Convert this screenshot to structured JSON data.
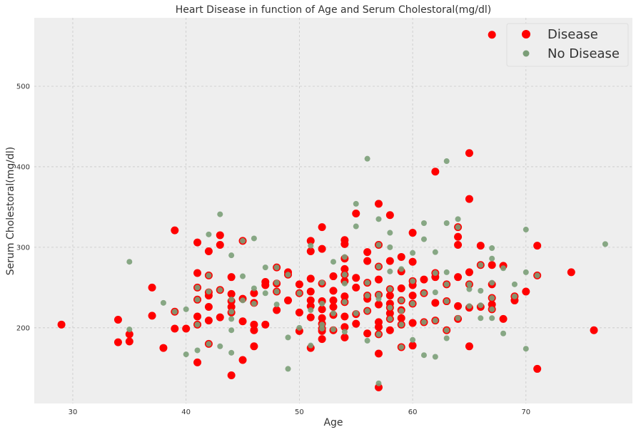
{
  "chart_data": {
    "type": "scatter",
    "title": "Heart Disease in function of Age and Serum Cholestoral(mg/dl)",
    "xlabel": "Age",
    "ylabel": "Serum Cholestoral(mg/dl)",
    "xlim": [
      26.6,
      79.4
    ],
    "ylim": [
      106,
      585
    ],
    "xticks": [
      30,
      40,
      50,
      60,
      70
    ],
    "yticks": [
      200,
      300,
      400,
      500
    ],
    "grid": true,
    "legend_position": "top-right",
    "background": "#EEEEEE",
    "series": [
      {
        "name": "Disease",
        "color": "#FF0000",
        "points": [
          [
            29,
            204
          ],
          [
            34,
            210
          ],
          [
            34,
            182
          ],
          [
            35,
            192
          ],
          [
            35,
            183
          ],
          [
            37,
            215
          ],
          [
            37,
            250
          ],
          [
            38,
            175
          ],
          [
            39,
            199
          ],
          [
            39,
            220
          ],
          [
            39,
            321
          ],
          [
            40,
            199
          ],
          [
            41,
            157
          ],
          [
            41,
            204
          ],
          [
            41,
            214
          ],
          [
            41,
            235
          ],
          [
            41,
            250
          ],
          [
            41,
            268
          ],
          [
            41,
            306
          ],
          [
            42,
            180
          ],
          [
            42,
            209
          ],
          [
            42,
            226
          ],
          [
            42,
            240
          ],
          [
            42,
            244
          ],
          [
            42,
            265
          ],
          [
            42,
            295
          ],
          [
            43,
            213
          ],
          [
            43,
            247
          ],
          [
            43,
            303
          ],
          [
            43,
            315
          ],
          [
            44,
            141
          ],
          [
            44,
            219
          ],
          [
            44,
            226
          ],
          [
            44,
            233
          ],
          [
            44,
            242
          ],
          [
            44,
            263
          ],
          [
            45,
            160
          ],
          [
            45,
            208
          ],
          [
            45,
            236
          ],
          [
            45,
            308
          ],
          [
            46,
            177
          ],
          [
            46,
            197
          ],
          [
            46,
            204
          ],
          [
            46,
            231
          ],
          [
            46,
            243
          ],
          [
            47,
            204
          ],
          [
            47,
            253
          ],
          [
            47,
            257
          ],
          [
            48,
            222
          ],
          [
            48,
            245
          ],
          [
            48,
            255
          ],
          [
            48,
            275
          ],
          [
            49,
            234
          ],
          [
            49,
            266
          ],
          [
            49,
            269
          ],
          [
            50,
            196
          ],
          [
            50,
            219
          ],
          [
            50,
            243
          ],
          [
            50,
            254
          ],
          [
            51,
            175
          ],
          [
            51,
            213
          ],
          [
            51,
            227
          ],
          [
            51,
            234
          ],
          [
            51,
            245
          ],
          [
            51,
            261
          ],
          [
            51,
            295
          ],
          [
            51,
            308
          ],
          [
            52,
            186
          ],
          [
            52,
            196
          ],
          [
            52,
            199
          ],
          [
            52,
            205
          ],
          [
            52,
            212
          ],
          [
            52,
            223
          ],
          [
            52,
            233
          ],
          [
            52,
            255
          ],
          [
            52,
            298
          ],
          [
            52,
            325
          ],
          [
            53,
            197
          ],
          [
            53,
            216
          ],
          [
            53,
            226
          ],
          [
            53,
            234
          ],
          [
            53,
            246
          ],
          [
            53,
            264
          ],
          [
            54,
            188
          ],
          [
            54,
            201
          ],
          [
            54,
            214
          ],
          [
            54,
            232
          ],
          [
            54,
            239
          ],
          [
            54,
            258
          ],
          [
            54,
            266
          ],
          [
            54,
            273
          ],
          [
            54,
            286
          ],
          [
            54,
            304
          ],
          [
            54,
            309
          ],
          [
            55,
            205
          ],
          [
            55,
            217
          ],
          [
            55,
            250
          ],
          [
            55,
            262
          ],
          [
            55,
            342
          ],
          [
            56,
            193
          ],
          [
            56,
            221
          ],
          [
            56,
            236
          ],
          [
            56,
            240
          ],
          [
            56,
            256
          ],
          [
            56,
            283
          ],
          [
            56,
            294
          ],
          [
            57,
            126
          ],
          [
            57,
            168
          ],
          [
            57,
            192
          ],
          [
            57,
            201
          ],
          [
            57,
            207
          ],
          [
            57,
            229
          ],
          [
            57,
            241
          ],
          [
            57,
            260
          ],
          [
            57,
            276
          ],
          [
            57,
            303
          ],
          [
            57,
            354
          ],
          [
            58,
            197
          ],
          [
            58,
            211
          ],
          [
            58,
            218
          ],
          [
            58,
            225
          ],
          [
            58,
            230
          ],
          [
            58,
            240
          ],
          [
            58,
            248
          ],
          [
            58,
            283
          ],
          [
            58,
            340
          ],
          [
            59,
            176
          ],
          [
            59,
            204
          ],
          [
            59,
            212
          ],
          [
            59,
            222
          ],
          [
            59,
            234
          ],
          [
            59,
            249
          ],
          [
            59,
            270
          ],
          [
            59,
            288
          ],
          [
            60,
            178
          ],
          [
            60,
            206
          ],
          [
            60,
            230
          ],
          [
            60,
            240
          ],
          [
            60,
            253
          ],
          [
            60,
            258
          ],
          [
            60,
            282
          ],
          [
            60,
            318
          ],
          [
            61,
            207
          ],
          [
            61,
            243
          ],
          [
            61,
            260
          ],
          [
            62,
            209
          ],
          [
            62,
            231
          ],
          [
            62,
            263
          ],
          [
            62,
            268
          ],
          [
            62,
            394
          ],
          [
            63,
            197
          ],
          [
            63,
            233
          ],
          [
            63,
            254
          ],
          [
            64,
            211
          ],
          [
            64,
            227
          ],
          [
            64,
            263
          ],
          [
            64,
            303
          ],
          [
            64,
            313
          ],
          [
            64,
            325
          ],
          [
            65,
            177
          ],
          [
            65,
            225
          ],
          [
            65,
            254
          ],
          [
            65,
            269
          ],
          [
            65,
            360
          ],
          [
            65,
            417
          ],
          [
            66,
            226
          ],
          [
            66,
            278
          ],
          [
            66,
            302
          ],
          [
            67,
            223
          ],
          [
            67,
            229
          ],
          [
            67,
            237
          ],
          [
            67,
            254
          ],
          [
            67,
            278
          ],
          [
            67,
            564
          ],
          [
            68,
            211
          ],
          [
            68,
            277
          ],
          [
            69,
            234
          ],
          [
            69,
            239
          ],
          [
            70,
            245
          ],
          [
            71,
            149
          ],
          [
            71,
            265
          ],
          [
            71,
            302
          ],
          [
            74,
            269
          ],
          [
            76,
            197
          ]
        ]
      },
      {
        "name": "No Disease",
        "color": "#7B9E78",
        "points": [
          [
            35,
            198
          ],
          [
            35,
            282
          ],
          [
            38,
            231
          ],
          [
            39,
            220
          ],
          [
            40,
            167
          ],
          [
            40,
            223
          ],
          [
            41,
            172
          ],
          [
            41,
            204
          ],
          [
            41,
            235
          ],
          [
            41,
            250
          ],
          [
            42,
            180
          ],
          [
            42,
            245
          ],
          [
            42,
            265
          ],
          [
            42,
            316
          ],
          [
            43,
            177
          ],
          [
            43,
            247
          ],
          [
            43,
            341
          ],
          [
            44,
            169
          ],
          [
            44,
            197
          ],
          [
            44,
            211
          ],
          [
            44,
            220
          ],
          [
            44,
            235
          ],
          [
            44,
            290
          ],
          [
            45,
            234
          ],
          [
            45,
            264
          ],
          [
            45,
            308
          ],
          [
            46,
            230
          ],
          [
            46,
            249
          ],
          [
            46,
            311
          ],
          [
            47,
            243
          ],
          [
            47,
            275
          ],
          [
            48,
            229
          ],
          [
            48,
            245
          ],
          [
            48,
            256
          ],
          [
            48,
            275
          ],
          [
            49,
            149
          ],
          [
            49,
            188
          ],
          [
            49,
            266
          ],
          [
            50,
            200
          ],
          [
            50,
            243
          ],
          [
            51,
            178
          ],
          [
            51,
            222
          ],
          [
            51,
            302
          ],
          [
            52,
            199
          ],
          [
            52,
            204
          ],
          [
            52,
            230
          ],
          [
            52,
            256
          ],
          [
            53,
            198
          ],
          [
            53,
            218
          ],
          [
            53,
            282
          ],
          [
            54,
            195
          ],
          [
            54,
            232
          ],
          [
            54,
            255
          ],
          [
            54,
            266
          ],
          [
            54,
            288
          ],
          [
            55,
            218
          ],
          [
            55,
            326
          ],
          [
            55,
            354
          ],
          [
            56,
            184
          ],
          [
            56,
            221
          ],
          [
            56,
            240
          ],
          [
            56,
            256
          ],
          [
            56,
            410
          ],
          [
            57,
            131
          ],
          [
            57,
            192
          ],
          [
            57,
            236
          ],
          [
            57,
            241
          ],
          [
            57,
            276
          ],
          [
            57,
            303
          ],
          [
            57,
            335
          ],
          [
            58,
            211
          ],
          [
            58,
            225
          ],
          [
            58,
            248
          ],
          [
            58,
            270
          ],
          [
            58,
            300
          ],
          [
            58,
            318
          ],
          [
            59,
            176
          ],
          [
            59,
            204
          ],
          [
            59,
            221
          ],
          [
            59,
            234
          ],
          [
            59,
            273
          ],
          [
            60,
            185
          ],
          [
            60,
            230
          ],
          [
            60,
            258
          ],
          [
            60,
            293
          ],
          [
            61,
            166
          ],
          [
            61,
            207
          ],
          [
            61,
            243
          ],
          [
            61,
            310
          ],
          [
            61,
            330
          ],
          [
            62,
            164
          ],
          [
            62,
            209
          ],
          [
            62,
            244
          ],
          [
            62,
            268
          ],
          [
            62,
            294
          ],
          [
            63,
            187
          ],
          [
            63,
            197
          ],
          [
            63,
            233
          ],
          [
            63,
            254
          ],
          [
            63,
            269
          ],
          [
            63,
            330
          ],
          [
            63,
            407
          ],
          [
            64,
            212
          ],
          [
            64,
            325
          ],
          [
            64,
            335
          ],
          [
            65,
            227
          ],
          [
            65,
            248
          ],
          [
            65,
            254
          ],
          [
            66,
            212
          ],
          [
            66,
            228
          ],
          [
            66,
            246
          ],
          [
            66,
            278
          ],
          [
            67,
            212
          ],
          [
            67,
            223
          ],
          [
            67,
            237
          ],
          [
            67,
            256
          ],
          [
            67,
            286
          ],
          [
            67,
            299
          ],
          [
            68,
            193
          ],
          [
            68,
            274
          ],
          [
            69,
            239
          ],
          [
            69,
            254
          ],
          [
            70,
            174
          ],
          [
            70,
            269
          ],
          [
            70,
            322
          ],
          [
            71,
            265
          ],
          [
            77,
            304
          ]
        ]
      }
    ]
  }
}
